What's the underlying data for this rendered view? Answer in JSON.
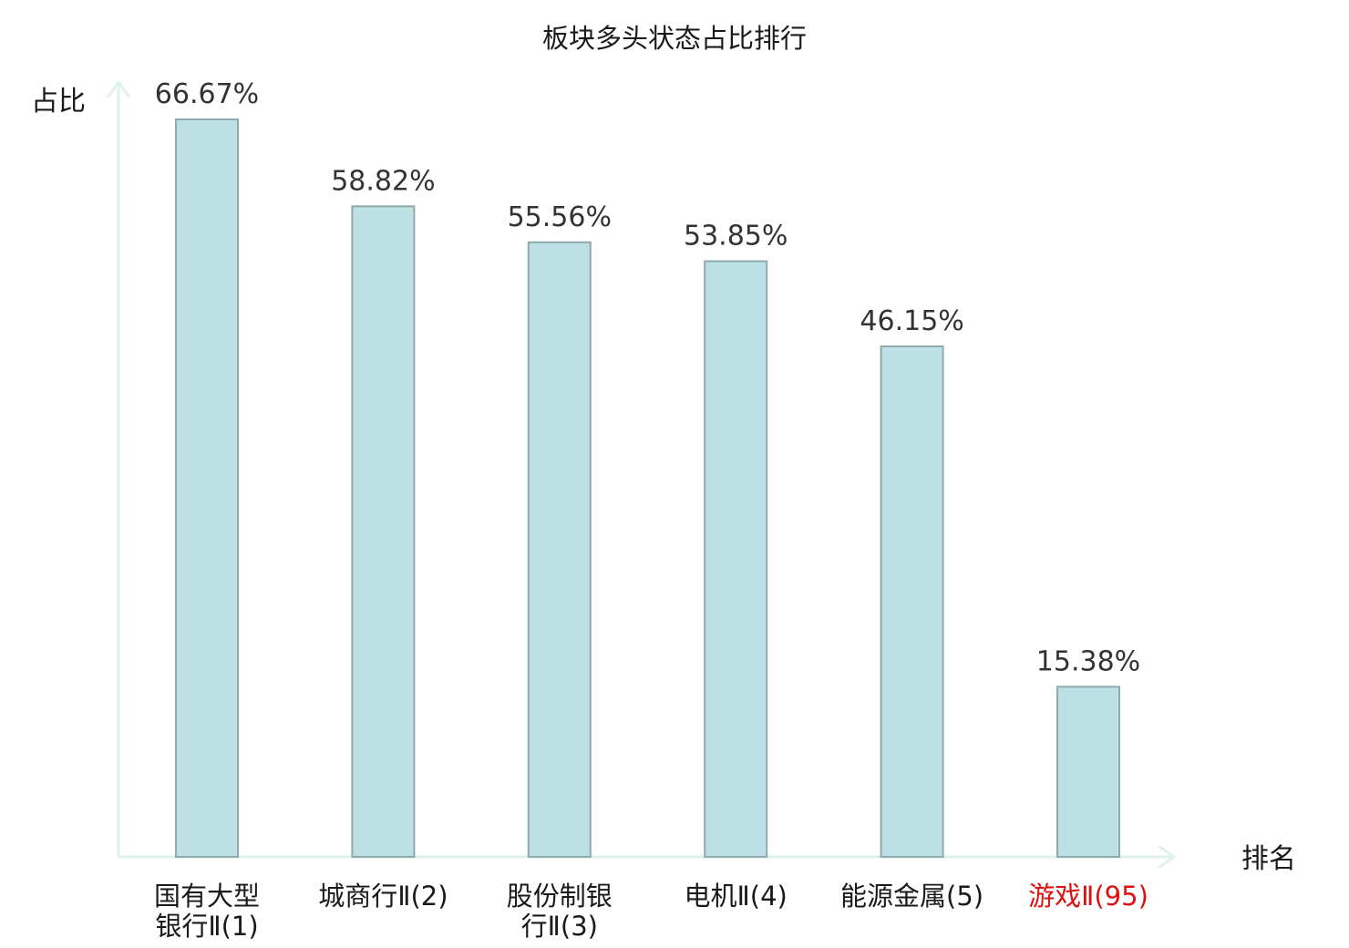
{
  "chart_data": {
    "type": "bar",
    "title": "板块多头状态占比排行",
    "ylabel": "占比",
    "xlabel": "排名",
    "ylim": [
      0,
      66.67
    ],
    "grid": false,
    "categories": [
      {
        "lines": [
          "国有大型",
          "银行Ⅱ(1)"
        ],
        "highlight": false
      },
      {
        "lines": [
          "城商行Ⅱ(2)"
        ],
        "highlight": false
      },
      {
        "lines": [
          "股份制银",
          "行Ⅱ(3)"
        ],
        "highlight": false
      },
      {
        "lines": [
          "电机Ⅱ(4)"
        ],
        "highlight": false
      },
      {
        "lines": [
          "能源金属(5)"
        ],
        "highlight": false
      },
      {
        "lines": [
          "游戏Ⅱ(95)"
        ],
        "highlight": true
      }
    ],
    "values": [
      66.67,
      58.82,
      55.56,
      53.85,
      46.15,
      15.38
    ],
    "value_labels": [
      "66.67%",
      "58.82%",
      "55.56%",
      "53.85%",
      "46.15%",
      "15.38%"
    ],
    "colors": {
      "bar_fill": "#bce0e3",
      "bar_stroke": "#8faaac",
      "axis": "#ddf1ee",
      "label_text": "#1a1a1a",
      "highlight_text": "#dd1111"
    }
  }
}
